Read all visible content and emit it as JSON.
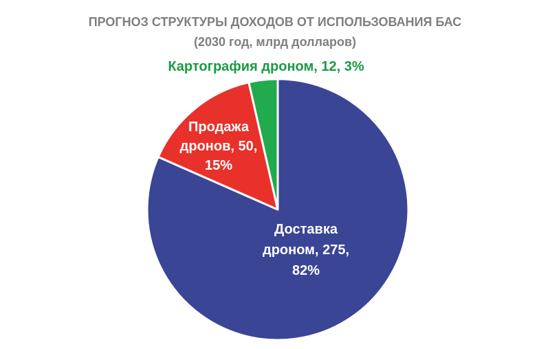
{
  "chart_data": {
    "type": "pie",
    "title": "ПРОГНОЗ СТРУКТУРЫ ДОХОДОВ ОТ ИСПОЛЬЗОВАНИЯ БАС",
    "subtitle": "(2030 год, млрд долларов)",
    "slices": [
      {
        "name": "Доставка дроном",
        "value": 275,
        "percent": "82%",
        "color": "#3b4596",
        "label_lines": [
          "Доставка",
          "дроном, 275,",
          "82%"
        ],
        "label_color": "#ffffff"
      },
      {
        "name": "Продажа дронов",
        "value": 50,
        "percent": "15%",
        "color": "#e8312a",
        "label_lines": [
          "Продажа",
          "дронов, 50,",
          "15%"
        ],
        "label_color": "#ffffff"
      },
      {
        "name": "Картография дроном",
        "value": 12,
        "percent": "3%",
        "color": "#22aa4e",
        "label_lines": [
          "Картография дроном, 12, 3%"
        ],
        "label_color": "#1a9a44"
      }
    ]
  }
}
